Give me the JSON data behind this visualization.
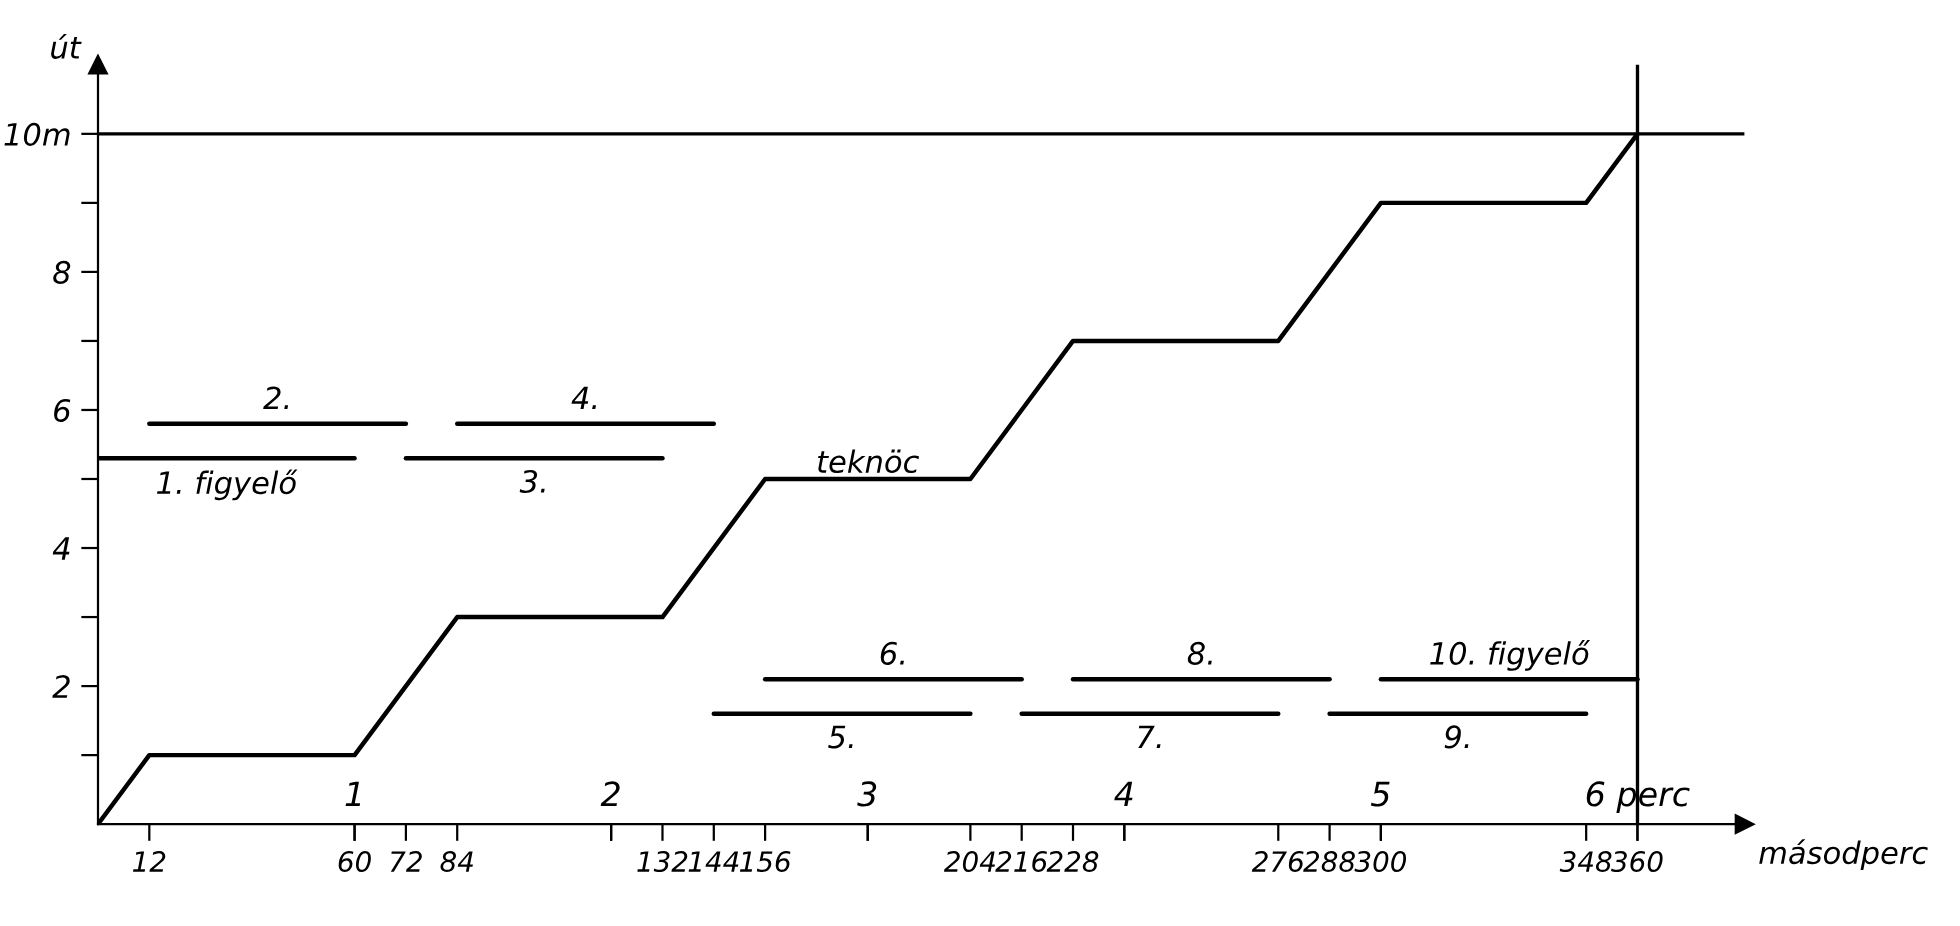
{
  "chart_data": {
    "type": "line",
    "xlabel": "másodperc",
    "ylabel": "út",
    "xlim": [
      0,
      385
    ],
    "ylim": [
      0,
      11
    ],
    "xticks": [
      12,
      60,
      72,
      84,
      {
        "value": 120,
        "label": null
      },
      132,
      144,
      156,
      {
        "value": 180,
        "label": null
      },
      204,
      216,
      228,
      {
        "value": 240,
        "label": null
      },
      276,
      288,
      300,
      348,
      360
    ],
    "yticks": [
      {
        "value": 1,
        "label": null
      },
      2,
      {
        "value": 3,
        "label": null
      },
      4,
      {
        "value": 5,
        "label": null
      },
      6,
      {
        "value": 7,
        "label": null
      },
      8,
      {
        "value": 9,
        "label": null
      },
      {
        "value": 10,
        "label": "10m"
      }
    ],
    "grid": false,
    "line_style": "solid",
    "marker": "none",
    "ref_lines": [
      {
        "axis": "y",
        "value": 10,
        "color": "#000000"
      },
      {
        "axis": "x",
        "value": 360,
        "color": "#000000"
      }
    ],
    "series": [
      {
        "name": "teknöc",
        "color": "#000000",
        "x": [
          0,
          12,
          60,
          84,
          132,
          156,
          204,
          228,
          276,
          300,
          348,
          360
        ],
        "values": [
          0,
          1,
          1,
          3,
          3,
          5,
          5,
          7,
          7,
          9,
          9,
          10
        ]
      },
      {
        "name": "1. figyelő",
        "color": "#000000",
        "x": [
          0,
          60
        ],
        "values": [
          5.3,
          5.3
        ]
      },
      {
        "name": "2.",
        "color": "#000000",
        "x": [
          12,
          72
        ],
        "values": [
          5.8,
          5.8
        ]
      },
      {
        "name": "3.",
        "color": "#000000",
        "x": [
          72,
          132
        ],
        "values": [
          5.3,
          5.3
        ]
      },
      {
        "name": "4.",
        "color": "#000000",
        "x": [
          84,
          144
        ],
        "values": [
          5.8,
          5.8
        ]
      },
      {
        "name": "5.",
        "color": "#000000",
        "x": [
          144,
          204
        ],
        "values": [
          1.6,
          1.6
        ]
      },
      {
        "name": "6.",
        "color": "#000000",
        "x": [
          156,
          216
        ],
        "values": [
          2.1,
          2.1
        ]
      },
      {
        "name": "7.",
        "color": "#000000",
        "x": [
          216,
          276
        ],
        "values": [
          1.6,
          1.6
        ]
      },
      {
        "name": "8.",
        "color": "#000000",
        "x": [
          228,
          288
        ],
        "values": [
          2.1,
          2.1
        ]
      },
      {
        "name": "9.",
        "color": "#000000",
        "x": [
          288,
          348
        ],
        "values": [
          1.6,
          1.6
        ]
      },
      {
        "name": "10. figyelő",
        "color": "#000000",
        "x": [
          300,
          360
        ],
        "values": [
          2.1,
          2.1
        ]
      }
    ],
    "x2lim": [
      0,
      6.417
    ],
    "x2ticks": [
      1,
      2,
      3,
      4,
      5,
      {
        "value": 6,
        "label": "6 perc"
      }
    ]
  }
}
